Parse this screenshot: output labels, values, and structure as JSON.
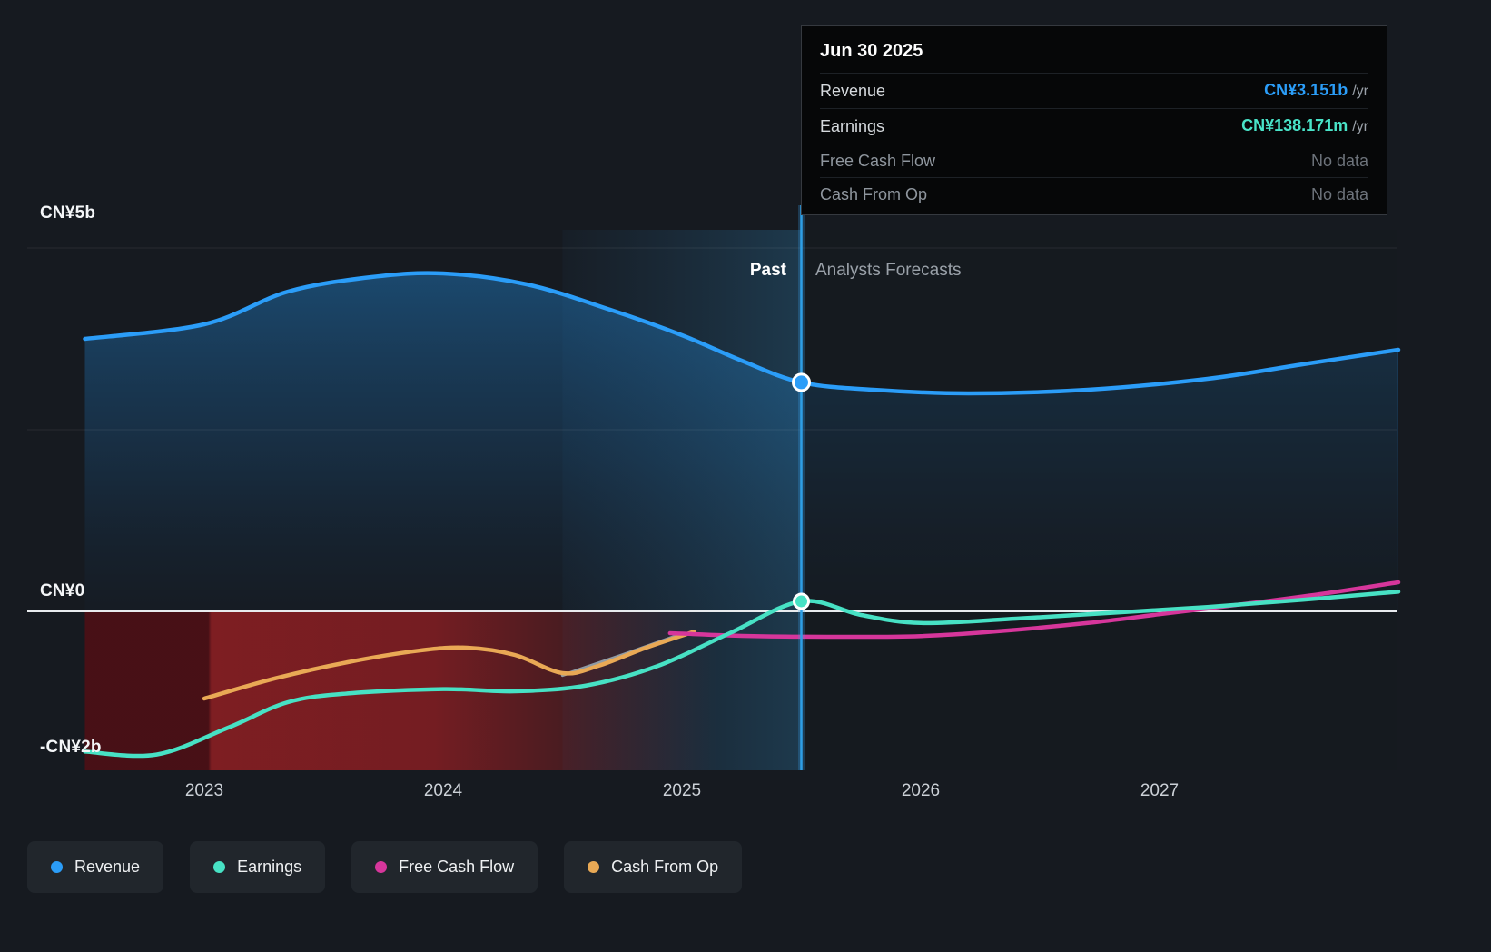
{
  "tooltip": {
    "date": "Jun 30 2025",
    "rows": [
      {
        "label": "Revenue",
        "value": "CN¥3.151b",
        "suffix": "/yr"
      },
      {
        "label": "Earnings",
        "value": "CN¥138.171m",
        "suffix": "/yr"
      },
      {
        "label": "Free Cash Flow",
        "value": "No data",
        "suffix": ""
      },
      {
        "label": "Cash From Op",
        "value": "No data",
        "suffix": ""
      }
    ]
  },
  "labels": {
    "past": "Past",
    "forecast": "Analysts Forecasts"
  },
  "y_axis": [
    {
      "value": 5,
      "label": "CN¥5b"
    },
    {
      "value": 0,
      "label": "CN¥0"
    },
    {
      "value": -2,
      "label": "-CN¥2b"
    }
  ],
  "x_axis": [
    "2023",
    "2024",
    "2025",
    "2026",
    "2027"
  ],
  "legend": [
    {
      "label": "Revenue",
      "color": "#2b9df8"
    },
    {
      "label": "Earnings",
      "color": "#47e1c4"
    },
    {
      "label": "Free Cash Flow",
      "color": "#d6369b"
    },
    {
      "label": "Cash From Op",
      "color": "#e9a955"
    }
  ],
  "chart_data": {
    "type": "line",
    "title": "",
    "xlabel": "",
    "ylabel": "",
    "unit": "CN¥ billions per year",
    "xlim": [
      2022.5,
      2028
    ],
    "ylim": [
      -2.2,
      5
    ],
    "gridlines": [
      5,
      2.5,
      0
    ],
    "divider_x": 2025.5,
    "highlight_band": [
      2024.5,
      2025.5
    ],
    "negative_zone": {
      "x": [
        2022.5,
        2025.15
      ]
    },
    "series": [
      {
        "name": "Revenue",
        "color": "#2b9df8",
        "z": 5,
        "width": 4.5,
        "area": true,
        "points": [
          [
            2022.5,
            3.75
          ],
          [
            2023,
            3.95
          ],
          [
            2023.35,
            4.4
          ],
          [
            2023.7,
            4.6
          ],
          [
            2024,
            4.65
          ],
          [
            2024.35,
            4.5
          ],
          [
            2024.7,
            4.15
          ],
          [
            2025,
            3.8
          ],
          [
            2025.25,
            3.45
          ],
          [
            2025.5,
            3.151
          ],
          [
            2025.8,
            3.05
          ],
          [
            2026.2,
            3.0
          ],
          [
            2026.7,
            3.05
          ],
          [
            2027.2,
            3.2
          ],
          [
            2027.6,
            3.4
          ],
          [
            2028,
            3.6
          ]
        ]
      },
      {
        "name": "Earnings",
        "color": "#47e1c4",
        "z": 4,
        "width": 4.5,
        "points": [
          [
            2022.5,
            -1.93
          ],
          [
            2022.8,
            -1.97
          ],
          [
            2023.1,
            -1.6
          ],
          [
            2023.35,
            -1.25
          ],
          [
            2023.6,
            -1.13
          ],
          [
            2024,
            -1.07
          ],
          [
            2024.3,
            -1.1
          ],
          [
            2024.6,
            -1.02
          ],
          [
            2024.9,
            -0.75
          ],
          [
            2025.2,
            -0.3
          ],
          [
            2025.5,
            0.138
          ],
          [
            2025.75,
            -0.05
          ],
          [
            2026,
            -0.16
          ],
          [
            2026.4,
            -0.1
          ],
          [
            2026.8,
            -0.02
          ],
          [
            2027.2,
            0.06
          ],
          [
            2027.6,
            0.16
          ],
          [
            2028,
            0.27
          ]
        ]
      },
      {
        "name": "Free Cash Flow",
        "color": "#d6369b",
        "z": 3,
        "width": 4.5,
        "points": [
          [
            2024.95,
            -0.3
          ],
          [
            2025.3,
            -0.34
          ],
          [
            2025.7,
            -0.35
          ],
          [
            2026,
            -0.34
          ],
          [
            2026.3,
            -0.28
          ],
          [
            2026.7,
            -0.16
          ],
          [
            2027,
            -0.04
          ],
          [
            2027.4,
            0.12
          ],
          [
            2027.7,
            0.25
          ],
          [
            2028,
            0.4
          ]
        ]
      },
      {
        "name": "Free Cash Flow (past)",
        "color": "#8f9aa4",
        "z": 1,
        "width": 3.5,
        "points": [
          [
            2024.5,
            -0.88
          ],
          [
            2024.75,
            -0.6
          ],
          [
            2025,
            -0.31
          ]
        ]
      },
      {
        "name": "Cash From Op",
        "color": "#e9a955",
        "z": 2,
        "width": 4.5,
        "points": [
          [
            2023,
            -1.2
          ],
          [
            2023.3,
            -0.92
          ],
          [
            2023.6,
            -0.7
          ],
          [
            2023.9,
            -0.54
          ],
          [
            2024.1,
            -0.5
          ],
          [
            2024.3,
            -0.6
          ],
          [
            2024.5,
            -0.85
          ],
          [
            2024.65,
            -0.75
          ],
          [
            2024.85,
            -0.5
          ],
          [
            2025.05,
            -0.28
          ]
        ]
      }
    ],
    "markers": [
      {
        "series": "Revenue",
        "x": 2025.5,
        "y": 3.151,
        "label": "CN¥3.151b /yr",
        "color": "#2b9df8"
      },
      {
        "series": "Earnings",
        "x": 2025.5,
        "y": 0.138171,
        "label": "CN¥138.171m /yr",
        "color": "#47e1c4"
      }
    ]
  }
}
